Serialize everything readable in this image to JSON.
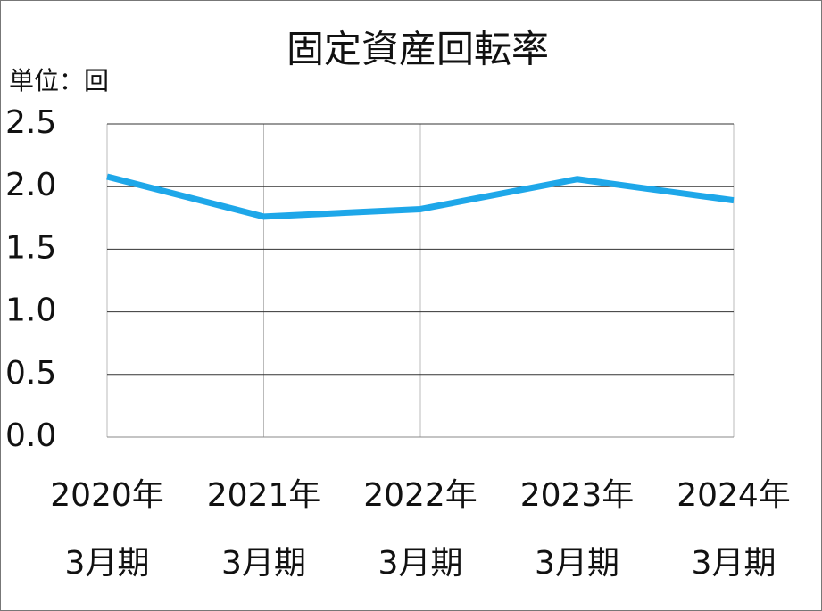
{
  "chart_data": {
    "type": "line",
    "title": "固定資産回転率",
    "unit_label": "単位：回",
    "categories": [
      [
        "2020年",
        "3月期"
      ],
      [
        "2021年",
        "3月期"
      ],
      [
        "2022年",
        "3月期"
      ],
      [
        "2023年",
        "3月期"
      ],
      [
        "2024年",
        "3月期"
      ]
    ],
    "series": [
      {
        "name": "固定資産回転率",
        "color": "#1ea7e9",
        "values": [
          2.08,
          1.76,
          1.82,
          2.06,
          1.89
        ]
      }
    ],
    "ylim": [
      0,
      2.5
    ],
    "yticks": [
      {
        "value": 0,
        "label": "0.0"
      },
      0.5,
      {
        "value": 1,
        "label": "1.0"
      },
      1.5,
      {
        "value": 2,
        "label": "2.0"
      },
      2.5
    ],
    "grid": true
  }
}
